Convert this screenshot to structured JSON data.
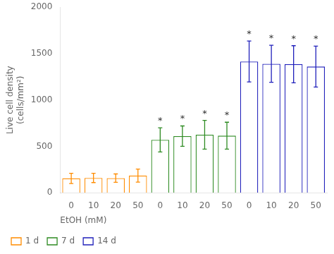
{
  "chart_data": {
    "type": "bar",
    "categories": [
      "0",
      "10",
      "20",
      "50",
      "0",
      "10",
      "20",
      "50",
      "0",
      "10",
      "20",
      "50"
    ],
    "xlabel": "EtOH (mM)",
    "ylabel": "Live cell density\n(cells/mm²)",
    "ylim": [
      0,
      2000
    ],
    "yticks": [
      0,
      500,
      1000,
      1500,
      2000
    ],
    "grid": false,
    "legend": "bottom",
    "significance_label": "*",
    "series": [
      {
        "name": "1 d",
        "color": "#FF8C00",
        "values": [
          155,
          160,
          158,
          185,
          null,
          null,
          null,
          null,
          null,
          null,
          null,
          null
        ],
        "errors": [
          55,
          50,
          45,
          70,
          null,
          null,
          null,
          null,
          null,
          null,
          null,
          null
        ],
        "significant": [
          false,
          false,
          false,
          false,
          null,
          null,
          null,
          null,
          null,
          null,
          null,
          null
        ]
      },
      {
        "name": "7 d",
        "color": "#2E8B22",
        "values": [
          null,
          null,
          null,
          null,
          570,
          610,
          625,
          615,
          null,
          null,
          null,
          null
        ],
        "errors": [
          null,
          null,
          null,
          null,
          130,
          110,
          155,
          145,
          null,
          null,
          null,
          null
        ],
        "significant": [
          null,
          null,
          null,
          null,
          true,
          true,
          true,
          true,
          null,
          null,
          null,
          null
        ]
      },
      {
        "name": "14 d",
        "color": "#2020BB",
        "values": [
          null,
          null,
          null,
          null,
          null,
          null,
          null,
          null,
          1415,
          1390,
          1385,
          1360
        ],
        "errors": [
          null,
          null,
          null,
          null,
          null,
          null,
          null,
          null,
          220,
          200,
          200,
          220
        ],
        "significant": [
          null,
          null,
          null,
          null,
          null,
          null,
          null,
          null,
          true,
          true,
          true,
          true
        ]
      }
    ]
  }
}
